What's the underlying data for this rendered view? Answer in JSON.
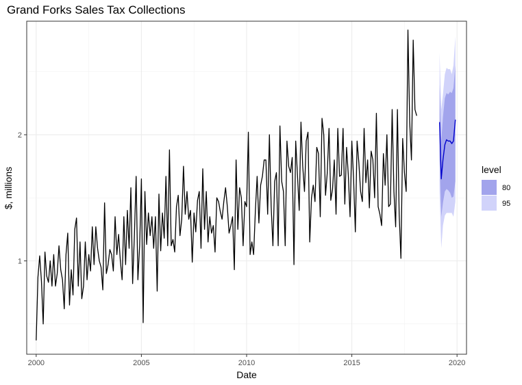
{
  "chart_data": {
    "type": "line",
    "title": "Grand Forks Sales Tax Collections",
    "xlabel": "Date",
    "ylabel": "$, millions",
    "xlim": [
      1999.55,
      2020.45
    ],
    "ylim": [
      0.26,
      2.9
    ],
    "x_ticks": [
      2000,
      2005,
      2010,
      2015,
      2020
    ],
    "x_tick_labels": [
      "2000",
      "2005",
      "2010",
      "2015",
      "2020"
    ],
    "y_ticks": [
      1,
      2
    ],
    "y_tick_labels": [
      "1",
      "2"
    ],
    "x_minor_ticks": [
      2002.5,
      2007.5,
      2012.5,
      2017.5
    ],
    "y_minor_ticks": [
      0.5,
      1.5,
      2.5
    ],
    "grid": true,
    "legend": {
      "title": "level",
      "position": "right",
      "entries": [
        {
          "label": "80",
          "color": "#a2a4ec"
        },
        {
          "label": "95",
          "color": "#d1d3fa"
        }
      ]
    },
    "series": [
      {
        "role": "observed",
        "color": "#000000",
        "start": 2000.0,
        "step": 0.08333333,
        "values": [
          0.37,
          0.87,
          1.04,
          0.84,
          0.5,
          1.07,
          0.88,
          0.83,
          1.0,
          0.8,
          1.05,
          0.8,
          0.9,
          1.12,
          0.93,
          0.85,
          0.62,
          1.05,
          1.22,
          0.65,
          0.93,
          0.73,
          1.25,
          1.34,
          0.8,
          1.15,
          0.7,
          0.8,
          1.15,
          0.85,
          1.05,
          0.92,
          1.27,
          0.97,
          1.27,
          1.1,
          1.0,
          0.95,
          0.77,
          1.46,
          0.9,
          0.97,
          1.09,
          1.05,
          0.92,
          1.35,
          1.05,
          1.21,
          1.0,
          0.85,
          1.35,
          0.97,
          1.4,
          1.1,
          1.58,
          0.82,
          1.2,
          1.67,
          0.85,
          1.12,
          1.65,
          0.51,
          1.55,
          1.13,
          1.38,
          1.2,
          1.35,
          1.1,
          1.35,
          0.76,
          1.53,
          1.08,
          1.38,
          1.18,
          1.67,
          1.12,
          1.88,
          1.12,
          1.17,
          1.07,
          1.43,
          1.52,
          1.2,
          1.33,
          1.75,
          1.37,
          1.55,
          1.33,
          1.4,
          0.99,
          1.38,
          1.23,
          1.48,
          1.55,
          1.1,
          1.73,
          1.25,
          1.55,
          1.15,
          1.35,
          1.22,
          1.28,
          1.07,
          1.5,
          1.47,
          1.39,
          1.33,
          1.47,
          1.58,
          1.43,
          1.22,
          1.28,
          1.35,
          0.93,
          1.8,
          1.25,
          1.58,
          1.5,
          1.12,
          1.47,
          1.43,
          2.02,
          1.05,
          1.15,
          1.05,
          1.4,
          1.67,
          1.3,
          1.6,
          1.67,
          1.8,
          1.8,
          1.37,
          2.0,
          1.43,
          1.12,
          1.63,
          1.7,
          1.12,
          2.07,
          1.63,
          1.55,
          1.12,
          1.95,
          1.75,
          1.7,
          1.82,
          0.97,
          1.95,
          1.68,
          1.4,
          2.1,
          1.75,
          1.55,
          1.95,
          2.02,
          1.15,
          1.5,
          1.6,
          1.47,
          1.9,
          1.85,
          1.35,
          2.13,
          2.0,
          1.52,
          1.7,
          2.05,
          1.48,
          1.57,
          1.8,
          1.37,
          2.05,
          1.67,
          1.68,
          2.05,
          1.45,
          1.9,
          1.68,
          1.35,
          1.95,
          1.65,
          1.23,
          1.95,
          1.78,
          1.55,
          1.47,
          2.05,
          1.62,
          1.8,
          1.42,
          1.87,
          1.8,
          1.5,
          2.17,
          1.43,
          1.37,
          1.28,
          1.85,
          1.6,
          2.0,
          1.43,
          1.45,
          2.2,
          1.55,
          1.27,
          2.2,
          1.37,
          1.02,
          1.97,
          1.7,
          1.55,
          2.83,
          2.1,
          1.8,
          2.75,
          2.2,
          2.15
        ]
      },
      {
        "role": "forecast",
        "color": "#0000cc",
        "x": [
          2019.17,
          2019.25,
          2019.33,
          2019.42,
          2019.5,
          2019.58,
          2019.67,
          2019.75,
          2019.83,
          2019.92
        ],
        "values": [
          2.1,
          1.65,
          1.8,
          1.92,
          1.96,
          1.95,
          1.95,
          1.93,
          1.95,
          2.12
        ],
        "lo80": [
          1.8,
          1.35,
          1.46,
          1.55,
          1.57,
          1.56,
          1.54,
          1.5,
          1.51,
          1.63
        ],
        "hi80": [
          2.4,
          1.95,
          2.14,
          2.29,
          2.33,
          2.32,
          2.34,
          2.33,
          2.37,
          2.55
        ],
        "lo95": [
          1.55,
          1.1,
          1.28,
          1.36,
          1.38,
          1.38,
          1.38,
          1.38,
          1.35,
          1.47
        ],
        "hi95": [
          2.65,
          2.2,
          2.32,
          2.48,
          2.53,
          2.52,
          2.52,
          2.48,
          2.55,
          2.78
        ]
      }
    ]
  }
}
